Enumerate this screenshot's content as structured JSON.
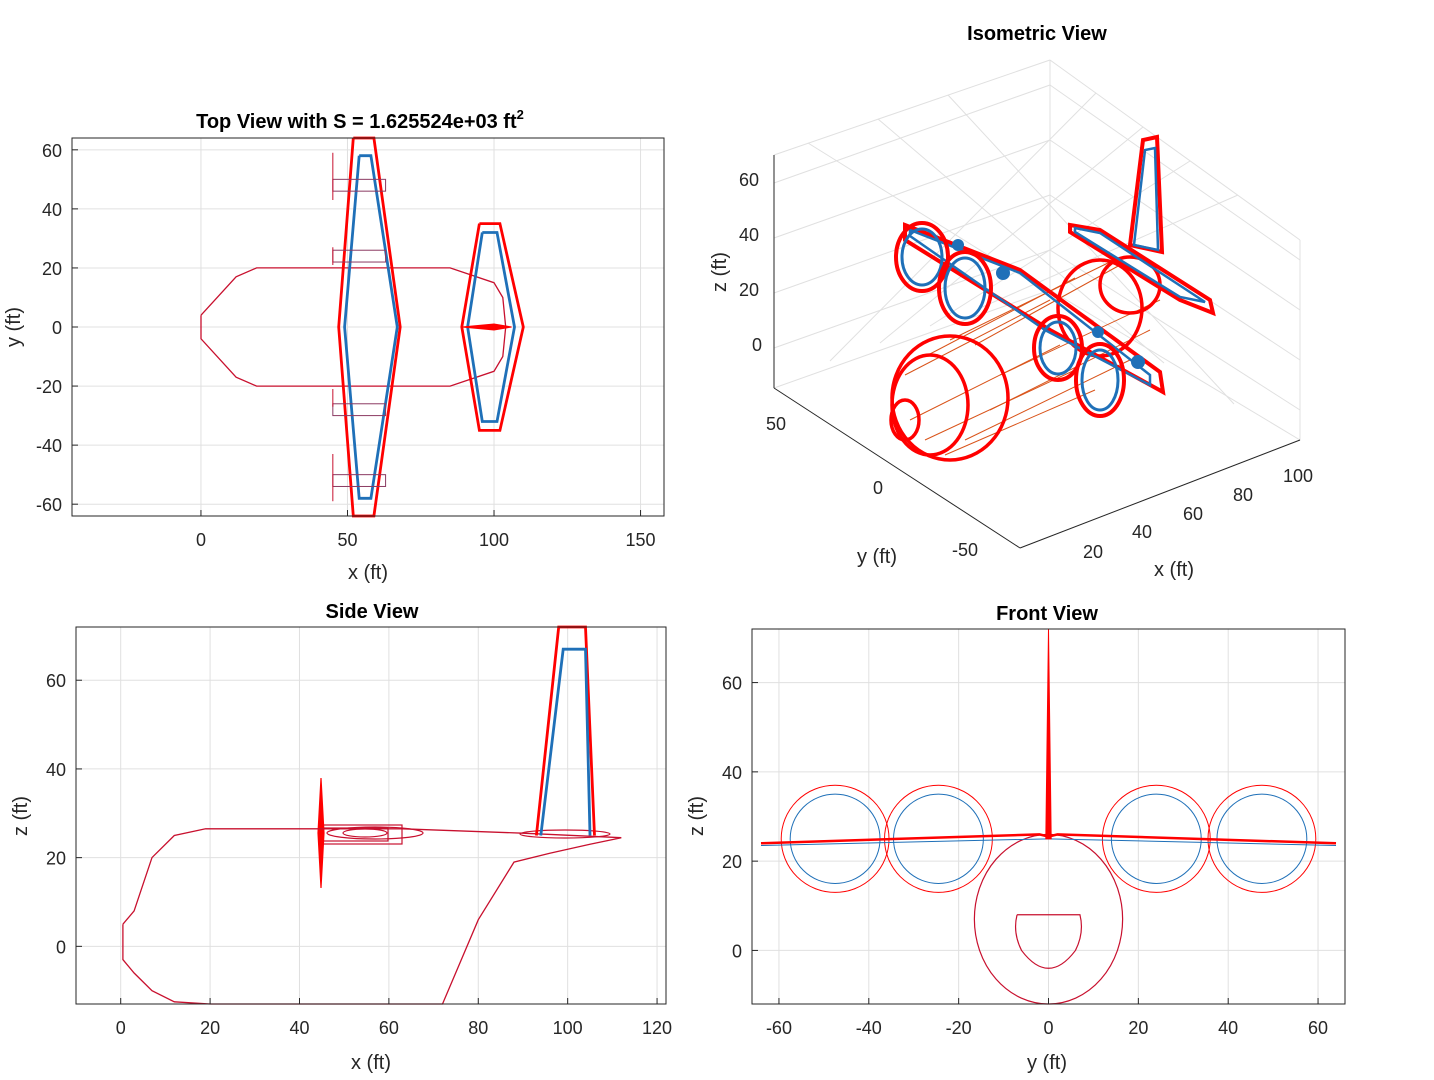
{
  "chart_data": [
    {
      "type": "line",
      "name": "top-view",
      "title_main": "Top View with S = 1.625524e+03 ft",
      "title_sup": "2",
      "xlabel": "x (ft)",
      "ylabel": "y (ft)",
      "xlim": [
        -44,
        158
      ],
      "ylim": [
        -64,
        64
      ],
      "xticks": [
        0,
        50,
        100,
        150
      ],
      "yticks": [
        -60,
        -40,
        -20,
        0,
        20,
        40,
        60
      ],
      "series": [
        {
          "name": "fuselage-outline",
          "color": "#c8102e",
          "points": [
            [
              0,
              4
            ],
            [
              12,
              17
            ],
            [
              19,
              20
            ],
            [
              85,
              20
            ],
            [
              100,
              15
            ],
            [
              103,
              10
            ],
            [
              104,
              0
            ],
            [
              103,
              -10
            ],
            [
              100,
              -15
            ],
            [
              85,
              -20
            ],
            [
              19,
              -20
            ],
            [
              12,
              -17
            ],
            [
              0,
              -4
            ],
            [
              0,
              4
            ]
          ]
        },
        {
          "name": "wing-outer",
          "color": "#ff0000",
          "points": [
            [
              52,
              64
            ],
            [
              59,
              64
            ],
            [
              68,
              0
            ],
            [
              59,
              -64
            ],
            [
              52,
              -64
            ],
            [
              47,
              0
            ],
            [
              52,
              64
            ]
          ]
        },
        {
          "name": "wing-inner",
          "color": "#1f70b8",
          "points": [
            [
              54,
              58
            ],
            [
              58,
              58
            ],
            [
              67,
              0
            ],
            [
              58,
              -58
            ],
            [
              54,
              -58
            ],
            [
              49,
              0
            ],
            [
              54,
              58
            ]
          ]
        },
        {
          "name": "tail-outer",
          "color": "#ff0000",
          "points": [
            [
              95,
              35
            ],
            [
              102,
              35
            ],
            [
              110,
              0
            ],
            [
              102,
              -35
            ],
            [
              95,
              -35
            ],
            [
              89,
              0
            ],
            [
              95,
              35
            ]
          ]
        },
        {
          "name": "tail-inner",
          "color": "#1f70b8",
          "points": [
            [
              96,
              32
            ],
            [
              101,
              32
            ],
            [
              107,
              0
            ],
            [
              101,
              -32
            ],
            [
              96,
              -32
            ],
            [
              91,
              0
            ],
            [
              96,
              32
            ]
          ]
        }
      ]
    },
    {
      "type": "line",
      "name": "isometric-view",
      "title": "Isometric View",
      "xlabel": "x (ft)",
      "ylabel": "y (ft)",
      "zlabel": "z (ft)",
      "xticks": [
        20,
        40,
        60,
        80,
        100
      ],
      "yticks": [
        -50,
        0,
        50
      ],
      "zticks": [
        0,
        20,
        40,
        60
      ]
    },
    {
      "type": "line",
      "name": "side-view",
      "title": "Side View",
      "xlabel": "x (ft)",
      "ylabel": "z (ft)",
      "xlim": [
        -10,
        122
      ],
      "ylim": [
        -13,
        72
      ],
      "xticks": [
        0,
        20,
        40,
        60,
        80,
        100,
        120
      ],
      "yticks": [
        0,
        20,
        40,
        60
      ],
      "series": [
        {
          "name": "fuselage-outline",
          "color": "#c8102e",
          "points": [
            [
              0.5,
              5
            ],
            [
              3,
              8
            ],
            [
              7,
              20
            ],
            [
              12,
              25
            ],
            [
              19,
              26.5
            ],
            [
              45,
              26.5
            ],
            [
              63,
              26.5
            ],
            [
              90,
              25.5
            ],
            [
              112,
              24.5
            ],
            [
              105,
              23
            ],
            [
              96,
              21
            ],
            [
              88,
              19
            ],
            [
              80,
              6
            ],
            [
              72,
              -13
            ],
            [
              45,
              -13
            ],
            [
              20,
              -13
            ],
            [
              12,
              -12.5
            ],
            [
              7,
              -10
            ],
            [
              3,
              -6
            ],
            [
              0.5,
              -3
            ],
            [
              0.5,
              5
            ]
          ]
        },
        {
          "name": "tail-outer",
          "color": "#ff0000",
          "points": [
            [
              93,
              25
            ],
            [
              98,
              72
            ],
            [
              104,
              72
            ],
            [
              106,
              25
            ]
          ]
        },
        {
          "name": "tail-inner",
          "color": "#1f70b8",
          "points": [
            [
              94,
              25
            ],
            [
              99,
              67
            ],
            [
              104,
              67
            ],
            [
              105,
              25
            ]
          ]
        }
      ]
    },
    {
      "type": "line",
      "name": "front-view",
      "title": "Front View",
      "xlabel": "y (ft)",
      "ylabel": "z (ft)",
      "xlim": [
        -66,
        66
      ],
      "ylim": [
        -12,
        72
      ],
      "xticks": [
        -60,
        -40,
        -20,
        0,
        20,
        40,
        60
      ],
      "yticks": [
        0,
        20,
        40,
        60
      ],
      "nacelles": [
        {
          "cy": -47.5,
          "cz": 25,
          "r_outer": 12,
          "r_inner": 10
        },
        {
          "cy": -24.5,
          "cz": 25,
          "r_outer": 12,
          "r_inner": 10
        },
        {
          "cy": 24,
          "cz": 25,
          "r_outer": 12,
          "r_inner": 10
        },
        {
          "cy": 47.5,
          "cz": 25,
          "r_outer": 12,
          "r_inner": 10
        }
      ],
      "fuselage": {
        "cy": 0,
        "cz": 7,
        "ry": 16.5,
        "rz": 19
      }
    }
  ]
}
